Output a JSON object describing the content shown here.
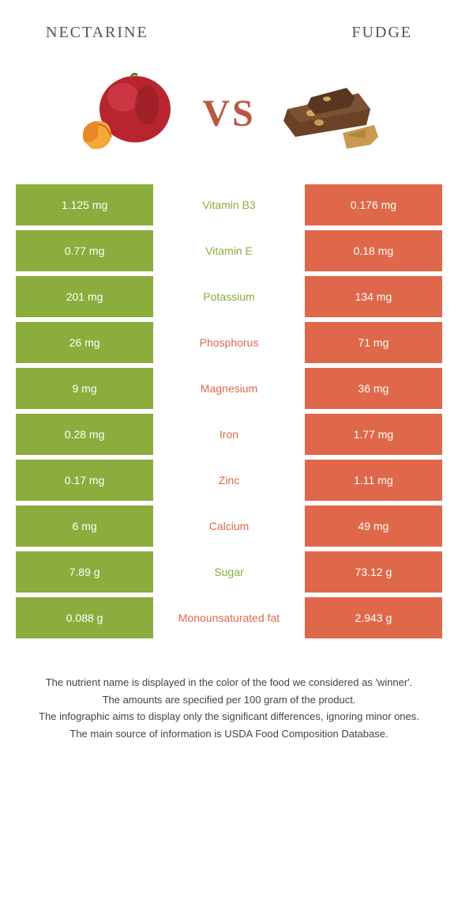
{
  "header": {
    "left_title": "NECTARINE",
    "right_title": "FUDGE"
  },
  "vs_label": "VS",
  "colors": {
    "left": "#8aad3d",
    "right": "#e0684a",
    "left_text": "#8aad3d",
    "right_text": "#e0684a",
    "vs_text": "#bb5844"
  },
  "rows": [
    {
      "left": "1.125 mg",
      "nutrient": "Vitamin B3",
      "right": "0.176 mg",
      "winner": "left"
    },
    {
      "left": "0.77 mg",
      "nutrient": "Vitamin E",
      "right": "0.18 mg",
      "winner": "left"
    },
    {
      "left": "201 mg",
      "nutrient": "Potassium",
      "right": "134 mg",
      "winner": "left"
    },
    {
      "left": "26 mg",
      "nutrient": "Phosphorus",
      "right": "71 mg",
      "winner": "right"
    },
    {
      "left": "9 mg",
      "nutrient": "Magnesium",
      "right": "36 mg",
      "winner": "right"
    },
    {
      "left": "0.28 mg",
      "nutrient": "Iron",
      "right": "1.77 mg",
      "winner": "right"
    },
    {
      "left": "0.17 mg",
      "nutrient": "Zinc",
      "right": "1.11 mg",
      "winner": "right"
    },
    {
      "left": "6 mg",
      "nutrient": "Calcium",
      "right": "49 mg",
      "winner": "right"
    },
    {
      "left": "7.89 g",
      "nutrient": "Sugar",
      "right": "73.12 g",
      "winner": "left"
    },
    {
      "left": "0.088 g",
      "nutrient": "Monounsaturated fat",
      "right": "2.943 g",
      "winner": "right"
    }
  ],
  "footer": {
    "line1": "The nutrient name is displayed in the color of the food we considered as 'winner'.",
    "line2": "The amounts are specified per 100 gram of the product.",
    "line3": "The infographic aims to display only the significant differences, ignoring minor ones.",
    "line4": "The main source of information is USDA Food Composition Database."
  }
}
